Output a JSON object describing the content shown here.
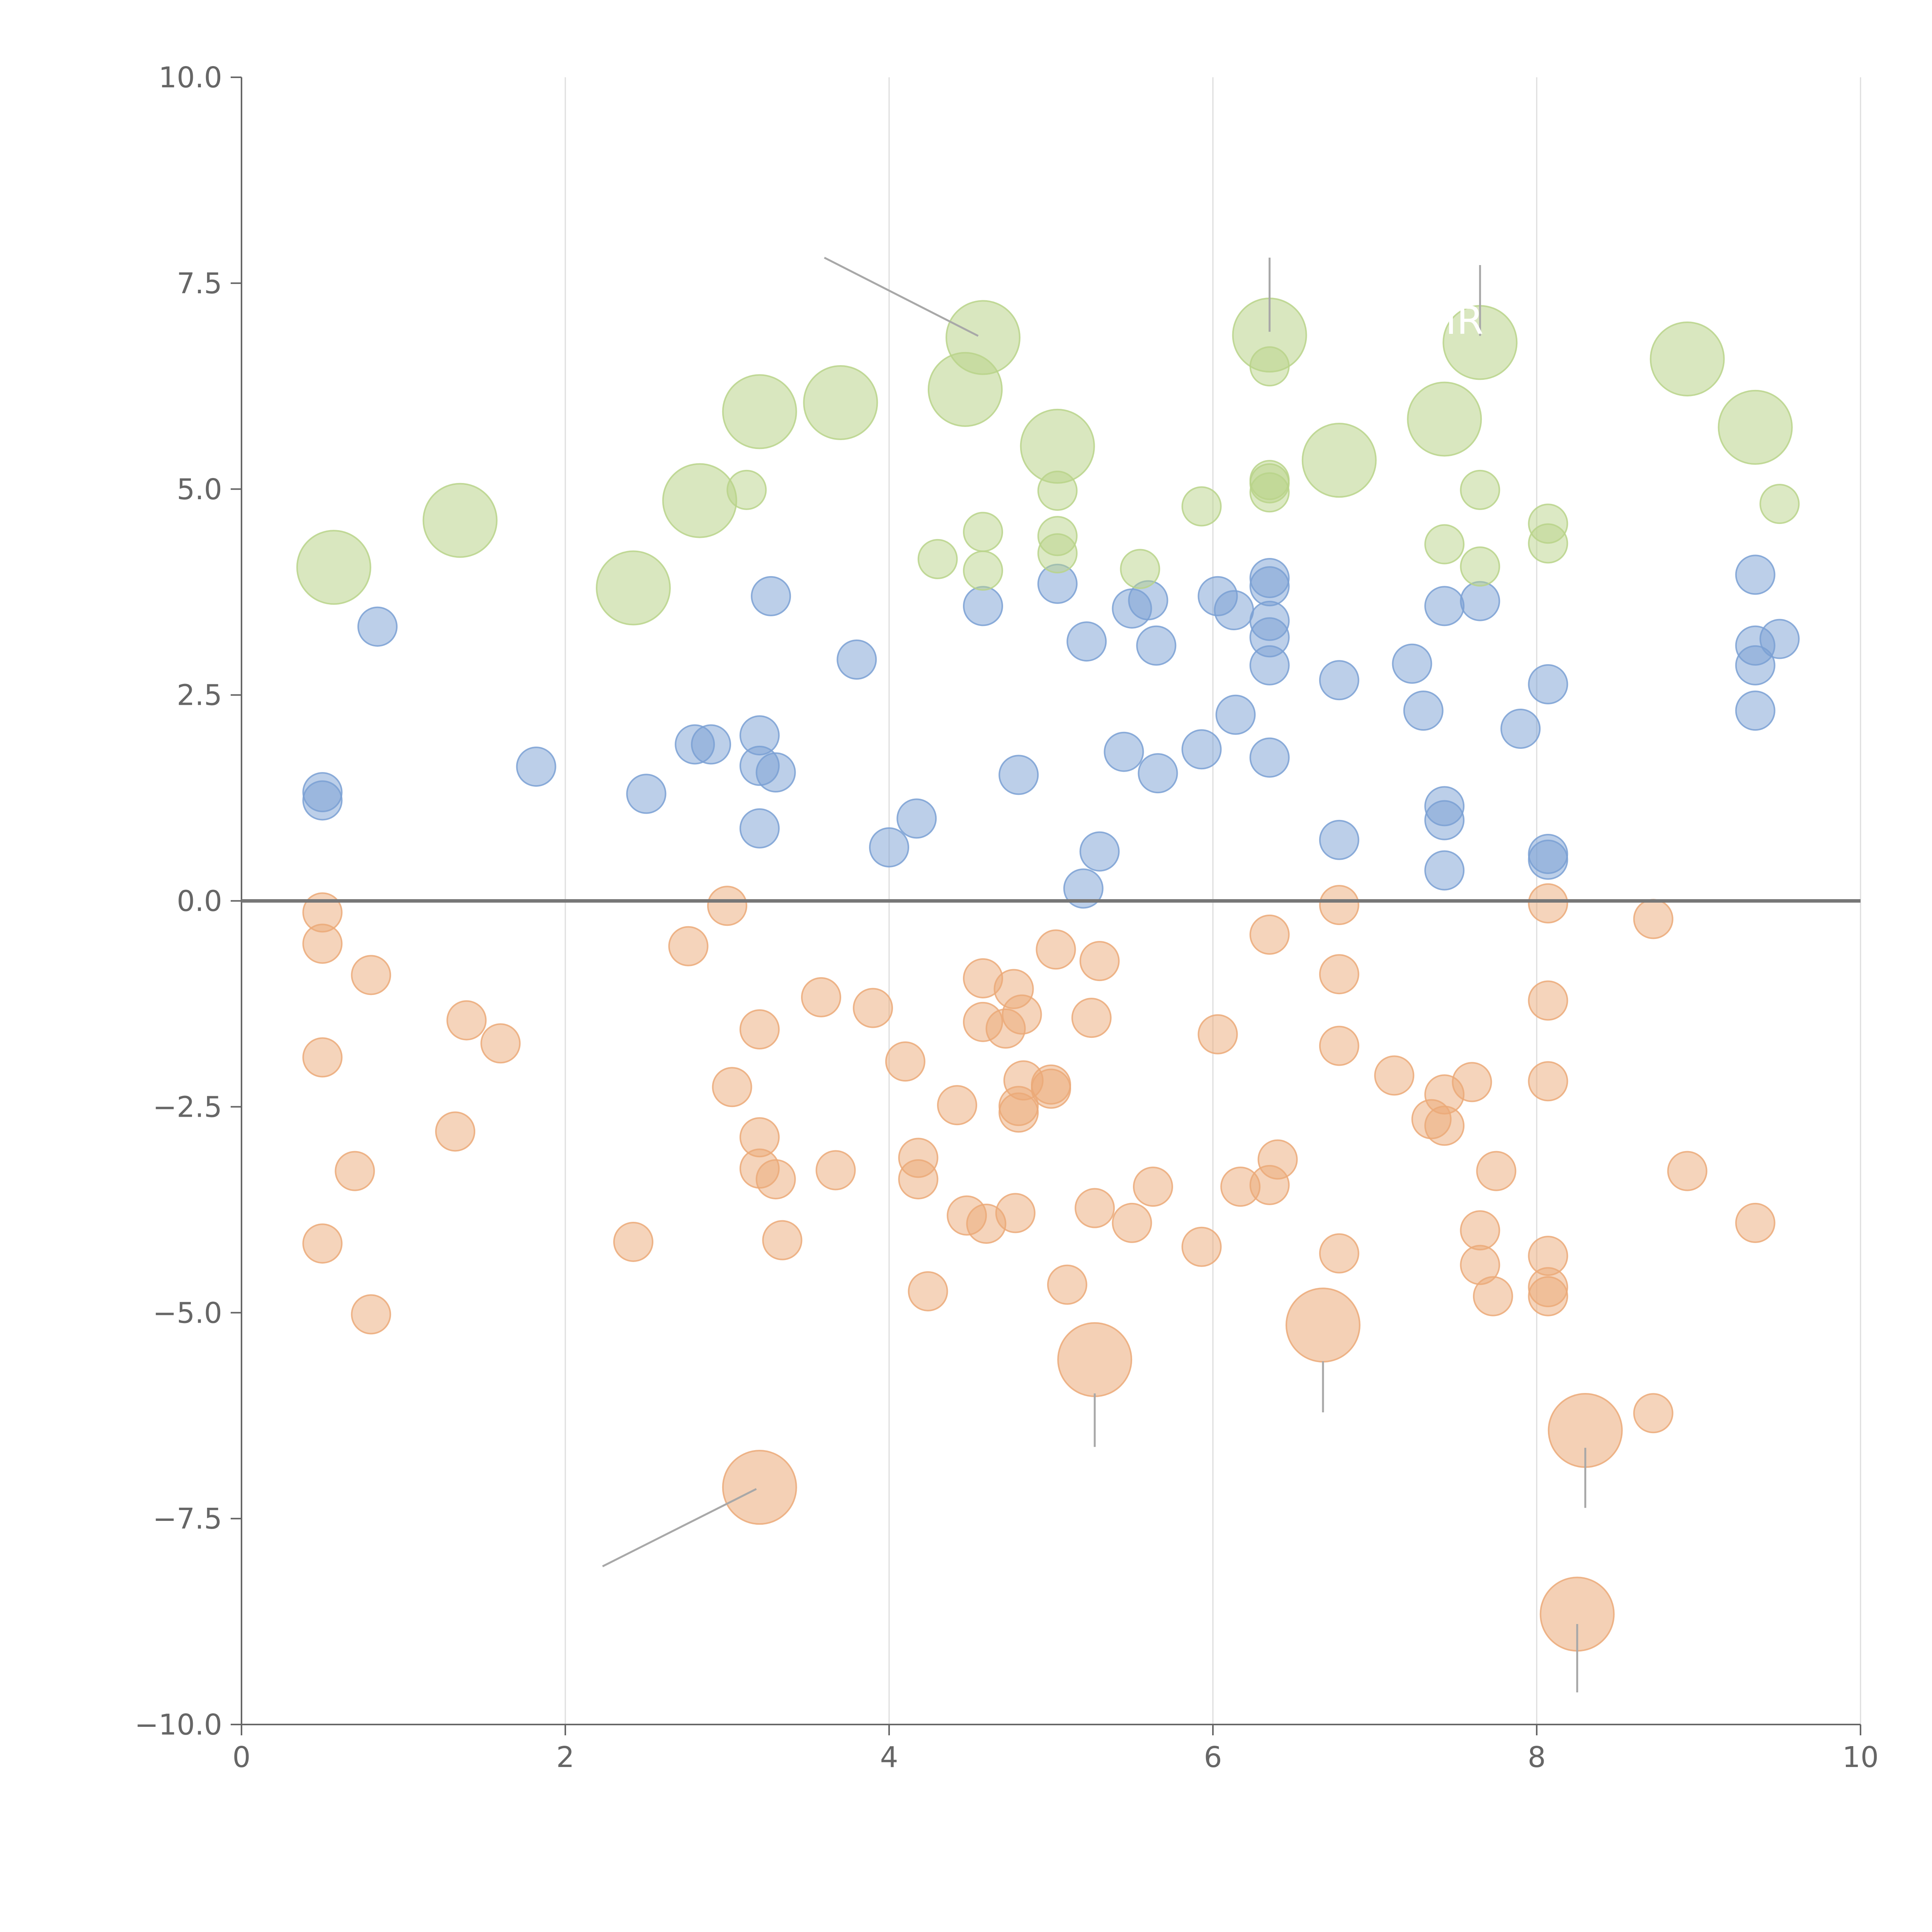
{
  "chart_data": {
    "type": "scatter",
    "title": "",
    "xlabel": "",
    "ylabel": "",
    "xlim": [
      0,
      10
    ],
    "ylim": [
      -10,
      10
    ],
    "x_ticks": [
      "0",
      "2",
      "4",
      "6",
      "8",
      "10"
    ],
    "y_ticks": [
      "10.0",
      "7.5",
      "5.0",
      "2.5",
      "0.0",
      "−2.5",
      "−5.0",
      "−7.5",
      "−10.0"
    ],
    "x_tick_values": [
      0,
      2,
      4,
      6,
      8,
      10
    ],
    "y_tick_values": [
      10,
      7.5,
      5,
      2.5,
      0,
      -2.5,
      -5,
      -7.5,
      -10
    ],
    "grid": "vertical",
    "reference_line_y": 0,
    "point_label_text": "IR",
    "series": [
      {
        "name": "blue",
        "color": "#7aa0d4",
        "size": 1,
        "points": [
          [
            0.5,
            1.32
          ],
          [
            0.5,
            1.22
          ],
          [
            0.84,
            3.33
          ],
          [
            1.82,
            1.63
          ],
          [
            2.5,
            1.3
          ],
          [
            2.8,
            1.9
          ],
          [
            2.9,
            1.9
          ],
          [
            3.2,
            2.01
          ],
          [
            3.2,
            1.64
          ],
          [
            3.3,
            1.56
          ],
          [
            3.2,
            0.88
          ],
          [
            3.27,
            3.7
          ],
          [
            3.8,
            2.93
          ],
          [
            4.0,
            0.65
          ],
          [
            4.17,
            1.0
          ],
          [
            4.58,
            3.58
          ],
          [
            4.8,
            1.53
          ],
          [
            5.04,
            3.85
          ],
          [
            5.2,
            0.15
          ],
          [
            5.22,
            3.15
          ],
          [
            5.3,
            0.6
          ],
          [
            5.45,
            1.81
          ],
          [
            5.5,
            3.55
          ],
          [
            5.6,
            3.65
          ],
          [
            5.65,
            3.1
          ],
          [
            5.66,
            1.55
          ],
          [
            5.93,
            1.84
          ],
          [
            6.03,
            3.7
          ],
          [
            6.13,
            3.53
          ],
          [
            6.14,
            2.26
          ],
          [
            6.35,
            3.92
          ],
          [
            6.35,
            3.82
          ],
          [
            6.35,
            3.4
          ],
          [
            6.35,
            3.2
          ],
          [
            6.35,
            2.86
          ],
          [
            6.35,
            1.74
          ],
          [
            6.78,
            2.68
          ],
          [
            6.78,
            0.74
          ],
          [
            7.23,
            2.88
          ],
          [
            7.3,
            2.31
          ],
          [
            7.43,
            3.58
          ],
          [
            7.43,
            1.15
          ],
          [
            7.43,
            0.98
          ],
          [
            7.43,
            0.37
          ],
          [
            7.65,
            3.64
          ],
          [
            7.9,
            2.09
          ],
          [
            8.07,
            2.63
          ],
          [
            8.07,
            0.57
          ],
          [
            8.07,
            0.5
          ],
          [
            9.35,
            3.96
          ],
          [
            9.35,
            3.1
          ],
          [
            9.35,
            2.86
          ],
          [
            9.35,
            2.31
          ],
          [
            9.5,
            3.18
          ]
        ]
      },
      {
        "name": "orange",
        "color": "#eba978",
        "size": 1,
        "points": [
          [
            0.5,
            -0.14
          ],
          [
            0.5,
            -0.52
          ],
          [
            0.5,
            -1.9
          ],
          [
            0.5,
            -4.16
          ],
          [
            0.7,
            -3.28
          ],
          [
            0.8,
            -0.9
          ],
          [
            0.8,
            -5.02
          ],
          [
            1.32,
            -2.8
          ],
          [
            1.39,
            -1.45
          ],
          [
            1.6,
            -1.73
          ],
          [
            2.42,
            -4.14
          ],
          [
            2.76,
            -0.55
          ],
          [
            3.0,
            -0.06
          ],
          [
            3.03,
            -2.26
          ],
          [
            3.2,
            -1.56
          ],
          [
            3.2,
            -2.87
          ],
          [
            3.2,
            -3.25
          ],
          [
            3.3,
            -3.38
          ],
          [
            3.34,
            -4.12
          ],
          [
            3.58,
            -1.17
          ],
          [
            3.67,
            -3.27
          ],
          [
            3.9,
            -1.3
          ],
          [
            4.1,
            -1.95
          ],
          [
            4.18,
            -3.12
          ],
          [
            4.18,
            -3.38
          ],
          [
            4.24,
            -4.74
          ],
          [
            4.42,
            -2.48
          ],
          [
            4.48,
            -3.82
          ],
          [
            4.58,
            -0.94
          ],
          [
            4.58,
            -1.47
          ],
          [
            4.6,
            -3.92
          ],
          [
            4.72,
            -1.55
          ],
          [
            4.77,
            -1.07
          ],
          [
            4.78,
            -3.79
          ],
          [
            4.8,
            -2.49
          ],
          [
            4.8,
            -2.57
          ],
          [
            4.82,
            -1.38
          ],
          [
            4.83,
            -2.18
          ],
          [
            5.0,
            -2.23
          ],
          [
            5.0,
            -2.28
          ],
          [
            5.03,
            -0.59
          ],
          [
            5.1,
            -4.66
          ],
          [
            5.25,
            -1.42
          ],
          [
            5.27,
            -3.73
          ],
          [
            5.3,
            -0.73
          ],
          [
            5.5,
            -3.91
          ],
          [
            5.63,
            -3.47
          ],
          [
            5.93,
            -4.2
          ],
          [
            6.03,
            -1.62
          ],
          [
            6.17,
            -3.47
          ],
          [
            6.35,
            -0.41
          ],
          [
            6.35,
            -3.45
          ],
          [
            6.4,
            -3.14
          ],
          [
            6.78,
            -0.05
          ],
          [
            6.78,
            -0.89
          ],
          [
            6.78,
            -1.76
          ],
          [
            6.78,
            -4.28
          ],
          [
            7.12,
            -2.12
          ],
          [
            7.35,
            -2.65
          ],
          [
            7.43,
            -2.35
          ],
          [
            7.43,
            -2.73
          ],
          [
            7.6,
            -2.2
          ],
          [
            7.65,
            -4.0
          ],
          [
            7.65,
            -4.42
          ],
          [
            7.73,
            -4.8
          ],
          [
            7.75,
            -3.28
          ],
          [
            8.07,
            -0.03
          ],
          [
            8.07,
            -1.21
          ],
          [
            8.07,
            -2.19
          ],
          [
            8.07,
            -4.31
          ],
          [
            8.07,
            -4.69
          ],
          [
            8.07,
            -4.8
          ],
          [
            8.72,
            -0.22
          ],
          [
            8.72,
            -6.22
          ],
          [
            8.93,
            -3.28
          ],
          [
            9.35,
            -3.91
          ]
        ]
      },
      {
        "name": "green",
        "color": "#b9d38a",
        "size": 1,
        "points": [
          [
            3.12,
            4.99
          ],
          [
            4.3,
            4.15
          ],
          [
            4.58,
            4.48
          ],
          [
            4.58,
            4.01
          ],
          [
            5.04,
            4.98
          ],
          [
            5.04,
            4.43
          ],
          [
            5.04,
            4.22
          ],
          [
            5.55,
            4.03
          ],
          [
            5.93,
            4.79
          ],
          [
            6.35,
            6.49
          ],
          [
            6.35,
            5.11
          ],
          [
            6.35,
            5.07
          ],
          [
            6.35,
            4.96
          ],
          [
            7.43,
            4.33
          ],
          [
            7.65,
            4.99
          ],
          [
            7.65,
            4.06
          ],
          [
            8.07,
            4.58
          ],
          [
            8.07,
            4.34
          ],
          [
            9.5,
            4.82
          ]
        ]
      }
    ],
    "highlights": [
      {
        "series": "green",
        "x": 0.57,
        "y": 4.05,
        "size": 2
      },
      {
        "series": "green",
        "x": 1.35,
        "y": 4.62,
        "size": 2
      },
      {
        "series": "green",
        "x": 2.42,
        "y": 3.8,
        "size": 2
      },
      {
        "series": "green",
        "x": 2.83,
        "y": 4.86,
        "size": 2
      },
      {
        "series": "green",
        "x": 3.2,
        "y": 5.94,
        "size": 2
      },
      {
        "series": "green",
        "x": 3.7,
        "y": 6.05,
        "size": 2
      },
      {
        "series": "green",
        "x": 4.47,
        "y": 6.21,
        "size": 2
      },
      {
        "series": "green",
        "x": 4.58,
        "y": 6.84,
        "size": 2
      },
      {
        "series": "green",
        "x": 5.04,
        "y": 5.52,
        "size": 2
      },
      {
        "series": "green",
        "x": 6.35,
        "y": 6.87,
        "size": 2
      },
      {
        "series": "green",
        "x": 6.78,
        "y": 5.35,
        "size": 2
      },
      {
        "series": "green",
        "x": 7.43,
        "y": 5.85,
        "size": 2
      },
      {
        "series": "green",
        "x": 7.65,
        "y": 6.78,
        "size": 2
      },
      {
        "series": "green",
        "x": 8.93,
        "y": 6.58,
        "size": 2
      },
      {
        "series": "green",
        "x": 9.35,
        "y": 5.75,
        "size": 2
      },
      {
        "series": "orange",
        "x": 3.2,
        "y": -7.12,
        "size": 2
      },
      {
        "series": "orange",
        "x": 5.27,
        "y": -5.57,
        "size": 2
      },
      {
        "series": "orange",
        "x": 6.68,
        "y": -5.15,
        "size": 2
      },
      {
        "series": "orange",
        "x": 8.3,
        "y": -6.43,
        "size": 2
      },
      {
        "series": "orange",
        "x": 8.25,
        "y": -8.66,
        "size": 2
      }
    ],
    "callouts": [
      {
        "from": [
          3.6,
          7.81
        ],
        "to": [
          4.55,
          6.86
        ]
      },
      {
        "from": [
          6.35,
          7.81
        ],
        "to": [
          6.35,
          6.91
        ]
      },
      {
        "from": [
          7.65,
          7.72
        ],
        "to": [
          7.65,
          6.86
        ]
      },
      {
        "from": [
          2.23,
          -8.08
        ],
        "to": [
          3.18,
          -7.14
        ]
      },
      {
        "from": [
          5.27,
          -5.98
        ],
        "to": [
          5.27,
          -6.63
        ]
      },
      {
        "from": [
          6.68,
          -5.59
        ],
        "to": [
          6.68,
          -6.21
        ]
      },
      {
        "from": [
          8.3,
          -6.64
        ],
        "to": [
          8.3,
          -7.37
        ]
      },
      {
        "from": [
          8.25,
          -8.78
        ],
        "to": [
          8.25,
          -9.61
        ]
      }
    ],
    "point_labels": [
      {
        "x": 7.65,
        "y": 7.05
      }
    ]
  }
}
